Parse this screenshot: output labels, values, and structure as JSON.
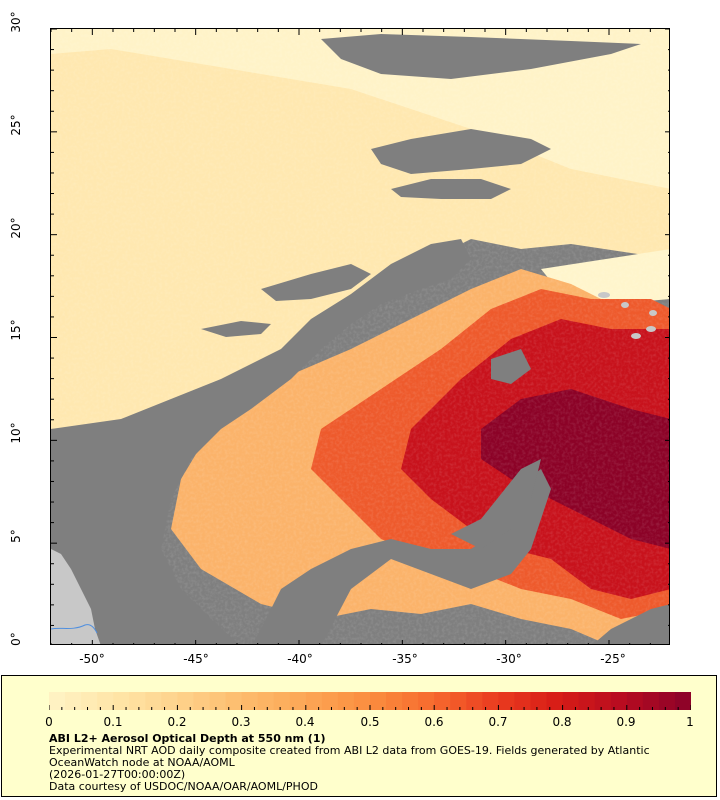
{
  "map": {
    "lat_labels": [
      "30°",
      "25°",
      "20°",
      "15°",
      "10°",
      "5°",
      "0°"
    ],
    "lon_labels": [
      "-50°",
      "-45°",
      "-40°",
      "-35°",
      "-30°",
      "-25°"
    ],
    "lon_range": [
      -52,
      -22
    ],
    "lat_range": [
      0,
      30
    ],
    "colors": {
      "no_data": "#7f7f7f",
      "land": "#c8c8c8",
      "river": "#4f8fdf",
      "frame": "#000000"
    }
  },
  "legend": {
    "background": "#ffffcc",
    "colorbar_labels": [
      "0",
      "0.1",
      "0.2",
      "0.3",
      "0.4",
      "0.5",
      "0.6",
      "0.7",
      "0.8",
      "0.9",
      "1"
    ],
    "colorbar_range": [
      0,
      1
    ],
    "colorbar_stops": [
      "#fff2c2",
      "#ffe4a6",
      "#fed18a",
      "#fdbb6c",
      "#fca655",
      "#fb8d3f",
      "#f76a2e",
      "#ea3d20",
      "#d71c16",
      "#b80c20",
      "#8f0328"
    ],
    "title": "ABI L2+ Aerosol Optical Depth at 550 nm (1)",
    "line1": "Experimental NRT AOD daily composite created from ABI L2 data from GOES-19. Fields generated by Atlantic",
    "line2": "OceanWatch node at NOAA/AOML",
    "line3": "(2026-01-27T00:00:00Z)",
    "line4": "Data courtesy of USDOC/NOAA/OAR/AOML/PHOD"
  }
}
